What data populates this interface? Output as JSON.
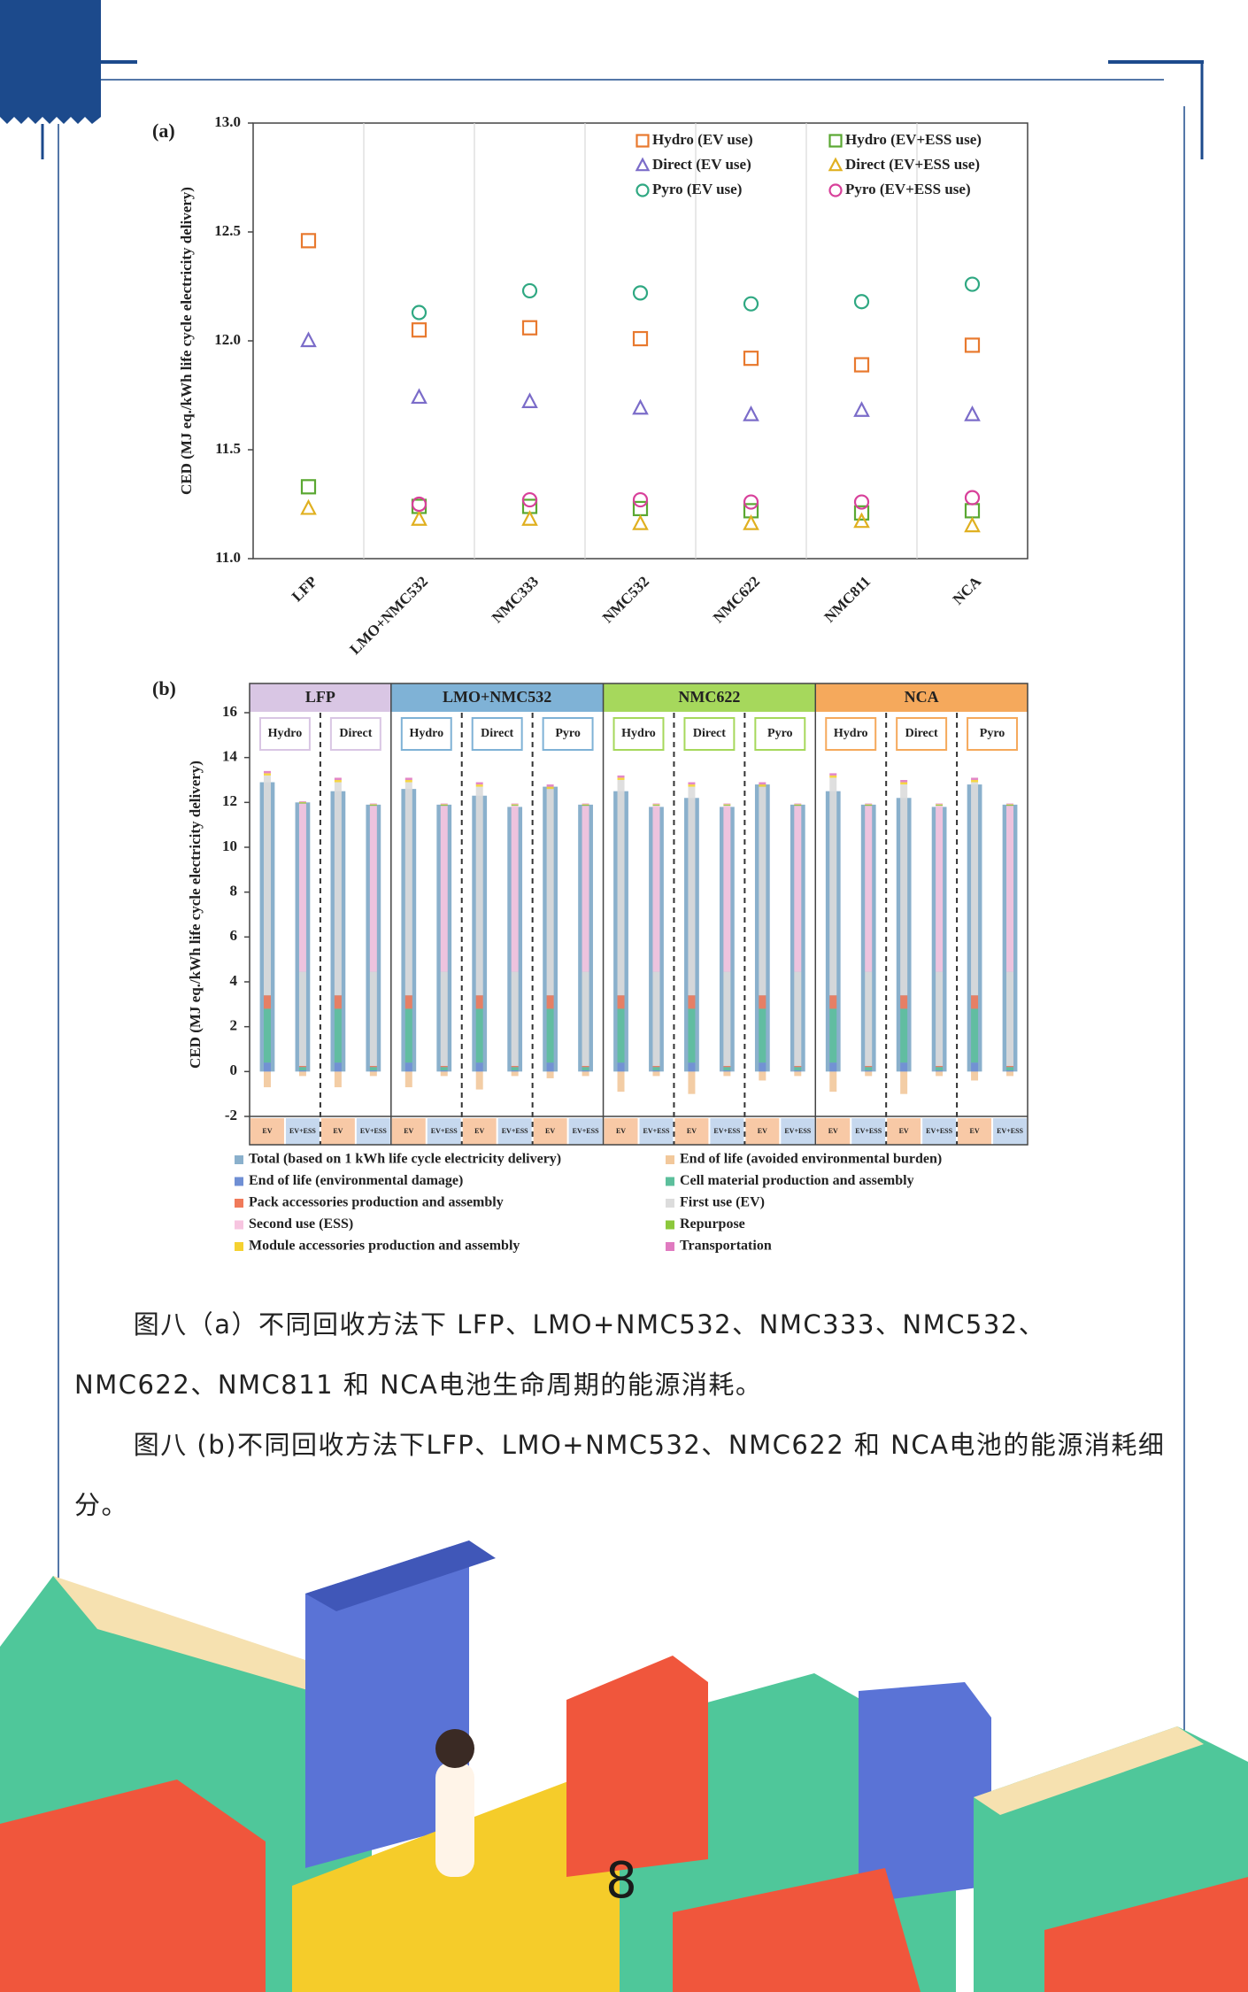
{
  "chart_data": [
    {
      "type": "scatter",
      "title": "(a)",
      "y_label": "CED (MJ eq./kWh life cycle electricity delivery)",
      "categories": [
        "LFP",
        "LMO+NMC532",
        "NMC333",
        "NMC532",
        "NMC622",
        "NMC811",
        "NCA"
      ],
      "ylim": [
        11,
        13
      ],
      "yticks": [
        {
          "value": 11,
          "label": "11.0"
        },
        {
          "value": 11.5,
          "label": "11.5"
        },
        {
          "value": 12,
          "label": "12.0"
        },
        {
          "value": 12.5,
          "label": "12.5"
        },
        {
          "value": 13,
          "label": "13.0"
        }
      ],
      "legend": "upper right",
      "series": [
        {
          "name": "Hydro (EV use)",
          "color": "#e8792e",
          "marker": "square",
          "values": [
            12.46,
            12.05,
            12.06,
            12.01,
            11.92,
            11.89,
            11.98
          ]
        },
        {
          "name": "Hydro (EV+ESS use)",
          "color": "#5aa832",
          "marker": "square",
          "values": [
            11.33,
            11.24,
            11.24,
            11.23,
            11.22,
            11.21,
            11.22
          ]
        },
        {
          "name": "Direct (EV use)",
          "color": "#7b6cc9",
          "marker": "triangle",
          "values": [
            12.0,
            11.74,
            11.72,
            11.69,
            11.66,
            11.68,
            11.66
          ]
        },
        {
          "name": "Direct (EV+ESS use)",
          "color": "#e0b020",
          "marker": "triangle",
          "values": [
            11.23,
            11.18,
            11.18,
            11.16,
            11.16,
            11.17,
            11.15
          ]
        },
        {
          "name": "Pyro (EV use)",
          "color": "#2fa882",
          "marker": "circle",
          "values": [
            null,
            12.13,
            12.23,
            12.22,
            12.17,
            12.18,
            12.26
          ]
        },
        {
          "name": "Pyro (EV+ESS use)",
          "color": "#d8409a",
          "marker": "circle",
          "values": [
            null,
            11.25,
            11.27,
            11.27,
            11.26,
            11.26,
            11.28
          ]
        }
      ]
    },
    {
      "type": "stacked_bar",
      "title": "(b)",
      "y_label": "CED (MJ eq./kWh life cycle electricity delivery)",
      "ylim": [
        -2,
        16
      ],
      "yticks": [
        -2,
        0,
        2,
        4,
        6,
        8,
        10,
        12,
        14,
        16
      ],
      "groups": [
        {
          "name": "LFP",
          "color": "#d9c6e4",
          "subgroups": [
            "Hydro",
            "Direct"
          ]
        },
        {
          "name": "LMO+NMC532",
          "color": "#7fb2d6",
          "subgroups": [
            "Hydro",
            "Direct",
            "Pyro"
          ]
        },
        {
          "name": "NMC622",
          "color": "#a6d85c",
          "subgroups": [
            "Hydro",
            "Direct",
            "Pyro"
          ]
        },
        {
          "name": "NCA",
          "color": "#f5a95c",
          "subgroups": [
            "Hydro",
            "Direct",
            "Pyro"
          ]
        }
      ],
      "categories": [
        "EV",
        "EV+ESS",
        "EV",
        "EV+ESS",
        "EV",
        "EV+ESS",
        "EV",
        "EV+ESS",
        "EV",
        "EV+ESS",
        "EV",
        "EV+ESS",
        "EV",
        "EV+ESS",
        "EV",
        "EV+ESS",
        "EV",
        "EV+ESS",
        "EV",
        "EV+ESS",
        "EV",
        "EV+ESS"
      ],
      "totals": {
        "name": "Total (based on 1 kWh life cycle electricity delivery)",
        "color": "#8ab0cc",
        "values": [
          12.9,
          12.0,
          12.5,
          11.9,
          12.6,
          11.9,
          12.3,
          11.8,
          12.7,
          11.9,
          12.5,
          11.8,
          12.2,
          11.8,
          12.8,
          11.9,
          12.5,
          11.9,
          12.2,
          11.8,
          12.8,
          11.9
        ]
      },
      "series": [
        {
          "name": "End of life (avoided environmental burden)",
          "color": "#f2c89b",
          "values": [
            -0.7,
            -0.2,
            -0.7,
            -0.2,
            -0.7,
            -0.2,
            -0.8,
            -0.2,
            -0.3,
            -0.2,
            -0.9,
            -0.2,
            -1.0,
            -0.2,
            -0.4,
            -0.2,
            -0.9,
            -0.2,
            -1.0,
            -0.2,
            -0.4,
            -0.2
          ]
        },
        {
          "name": "End of life (environmental damage)",
          "color": "#6f8fd4",
          "values": [
            0.4,
            0.05,
            0.4,
            0.05,
            0.4,
            0.05,
            0.4,
            0.05,
            0.4,
            0.05,
            0.4,
            0.05,
            0.4,
            0.05,
            0.4,
            0.05,
            0.4,
            0.05,
            0.4,
            0.05,
            0.4,
            0.05
          ]
        },
        {
          "name": "Cell material production and assembly",
          "color": "#5cbf9c",
          "values": [
            2.4,
            0.15,
            2.4,
            0.15,
            2.4,
            0.15,
            2.4,
            0.15,
            2.4,
            0.15,
            2.4,
            0.15,
            2.4,
            0.15,
            2.4,
            0.15,
            2.4,
            0.15,
            2.4,
            0.15,
            2.4,
            0.15
          ]
        },
        {
          "name": "Pack accessories production and assembly",
          "color": "#f07a5a",
          "values": [
            0.6,
            0.05,
            0.6,
            0.05,
            0.6,
            0.05,
            0.6,
            0.05,
            0.6,
            0.05,
            0.6,
            0.05,
            0.6,
            0.05,
            0.6,
            0.05,
            0.6,
            0.05,
            0.6,
            0.05,
            0.6,
            0.05
          ]
        },
        {
          "name": "First use (EV)",
          "color": "#dcdcdc",
          "values": [
            9.8,
            4.2,
            9.5,
            4.2,
            9.5,
            4.2,
            9.3,
            4.2,
            9.2,
            4.2,
            9.6,
            4.2,
            9.3,
            4.2,
            9.3,
            4.2,
            9.7,
            4.2,
            9.4,
            4.2,
            9.5,
            4.2
          ]
        },
        {
          "name": "Second use (ESS)",
          "color": "#f7c5e0",
          "values": [
            0,
            7.5,
            0,
            7.4,
            0,
            7.4,
            0,
            7.4,
            0,
            7.4,
            0,
            7.4,
            0,
            7.4,
            0,
            7.4,
            0,
            7.4,
            0,
            7.4,
            0,
            7.4
          ]
        },
        {
          "name": "Repurpose",
          "color": "#8cc83c",
          "values": [
            0,
            0.05,
            0,
            0.05,
            0,
            0.05,
            0,
            0.05,
            0,
            0.05,
            0,
            0.05,
            0,
            0.05,
            0,
            0.05,
            0,
            0.05,
            0,
            0.05,
            0,
            0.05
          ]
        },
        {
          "name": "Module accessories production and assembly",
          "color": "#f5d130",
          "values": [
            0.1,
            0.02,
            0.1,
            0.02,
            0.1,
            0.02,
            0.1,
            0.02,
            0.1,
            0.02,
            0.1,
            0.02,
            0.1,
            0.02,
            0.1,
            0.02,
            0.1,
            0.02,
            0.1,
            0.02,
            0.1,
            0.02
          ]
        },
        {
          "name": "Transportation",
          "color": "#e07ac0",
          "values": [
            0.1,
            0.03,
            0.1,
            0.03,
            0.1,
            0.03,
            0.1,
            0.03,
            0.1,
            0.03,
            0.1,
            0.03,
            0.1,
            0.03,
            0.1,
            0.03,
            0.1,
            0.03,
            0.1,
            0.03,
            0.1,
            0.03
          ]
        }
      ]
    }
  ],
  "captions": [
    "图八（a）不同回收方法下 LFP、LMO+NMC532、NMC333、NMC532、NMC622、NMC811 和 NCA电池生命周期的能源消耗。",
    "图八 (b)不同回收方法下LFP、LMO+NMC532、NMC622 和 NCA电池的能源消耗细分。"
  ],
  "page_number": "8"
}
